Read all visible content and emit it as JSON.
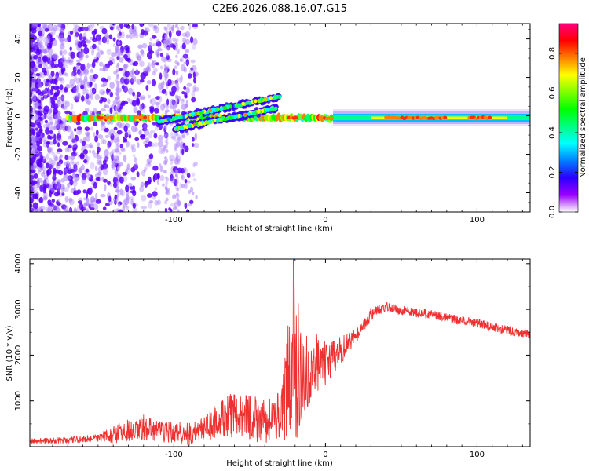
{
  "title": "C2E6.2026.088.16.07.G15",
  "chart_data": [
    {
      "type": "heatmap",
      "title": "C2E6.2026.088.16.07.G15",
      "xlabel": "Height of straight line (km)",
      "ylabel": "Frequency (Hz)",
      "xlim": [
        -195,
        135
      ],
      "ylim": [
        -50,
        48
      ],
      "xticks": [
        -100,
        0,
        100
      ],
      "xtick_labels": [
        "-100",
        "0",
        "100"
      ],
      "yticks": [
        -40,
        -20,
        0,
        20,
        40
      ],
      "ytick_labels": [
        "-40",
        "-20",
        "0",
        "20",
        "40"
      ],
      "colorbar": {
        "label": "Normalized spectral amplitude",
        "range": [
          0.0,
          0.95
        ],
        "ticks": [
          0.0,
          0.2,
          0.4,
          0.6,
          0.8
        ],
        "tick_labels": [
          "0.0",
          "0.2",
          "0.4",
          "0.6",
          "0.8"
        ],
        "colors": [
          "#ffffff",
          "#9a00ff",
          "#2a00ff",
          "#0080ff",
          "#00ffff",
          "#00ff80",
          "#00ff00",
          "#80ff00",
          "#ffff00",
          "#ff8000",
          "#ff0000",
          "#ff0080"
        ]
      },
      "main_band": {
        "x_range": [
          -170,
          135
        ],
        "center_frequency": -1,
        "bright_segments_x": [
          [
            -150,
            -140
          ],
          [
            -125,
            -118
          ],
          [
            -24,
            -18
          ],
          [
            -5,
            5
          ],
          [
            40,
            80
          ],
          [
            95,
            110
          ]
        ]
      },
      "diagonal_tracks": [
        {
          "x_start": -110,
          "y_start": -3,
          "x_end": -30,
          "y_end": 10
        },
        {
          "x_start": -100,
          "y_start": -7,
          "x_end": -32,
          "y_end": 4
        }
      ]
    },
    {
      "type": "line",
      "xlabel": "Height of straight line (km)",
      "ylabel": "SNR (10 * v/v)",
      "xlim": [
        -195,
        135
      ],
      "ylim": [
        0,
        4100
      ],
      "xticks": [
        -100,
        0,
        100
      ],
      "xtick_labels": [
        "-100",
        "0",
        "100"
      ],
      "yticks": [
        1000,
        2000,
        3000,
        4000
      ],
      "ytick_labels": [
        "1000",
        "2000",
        "3000",
        "4000"
      ],
      "series_color": "#ee3030",
      "envelope": {
        "x": [
          -195,
          -170,
          -150,
          -140,
          -130,
          -120,
          -110,
          -100,
          -90,
          -80,
          -70,
          -60,
          -50,
          -40,
          -30,
          -25,
          -22,
          -20,
          -15,
          -10,
          -5,
          0,
          5,
          10,
          20,
          25,
          30,
          35,
          40,
          45,
          50,
          60,
          70,
          80,
          90,
          100,
          110,
          120,
          130,
          135
        ],
        "y": [
          120,
          140,
          190,
          260,
          360,
          420,
          350,
          300,
          260,
          380,
          620,
          700,
          660,
          520,
          700,
          1400,
          1600,
          1700,
          1650,
          1700,
          1750,
          1820,
          1950,
          2100,
          2400,
          2600,
          2900,
          3000,
          3050,
          3020,
          2980,
          2930,
          2880,
          2820,
          2760,
          2700,
          2620,
          2550,
          2480,
          2430
        ]
      },
      "noise_amplitude": {
        "x": [
          -195,
          -150,
          -140,
          -120,
          -100,
          -80,
          -60,
          -40,
          -30,
          -25,
          -20,
          -15,
          -10,
          0,
          10,
          20,
          40,
          80,
          135
        ],
        "y": [
          60,
          80,
          200,
          280,
          240,
          280,
          520,
          520,
          500,
          1300,
          1800,
          1000,
          900,
          500,
          300,
          170,
          110,
          100,
          100
        ]
      },
      "spike": {
        "x": -21,
        "y": 4100
      }
    }
  ]
}
